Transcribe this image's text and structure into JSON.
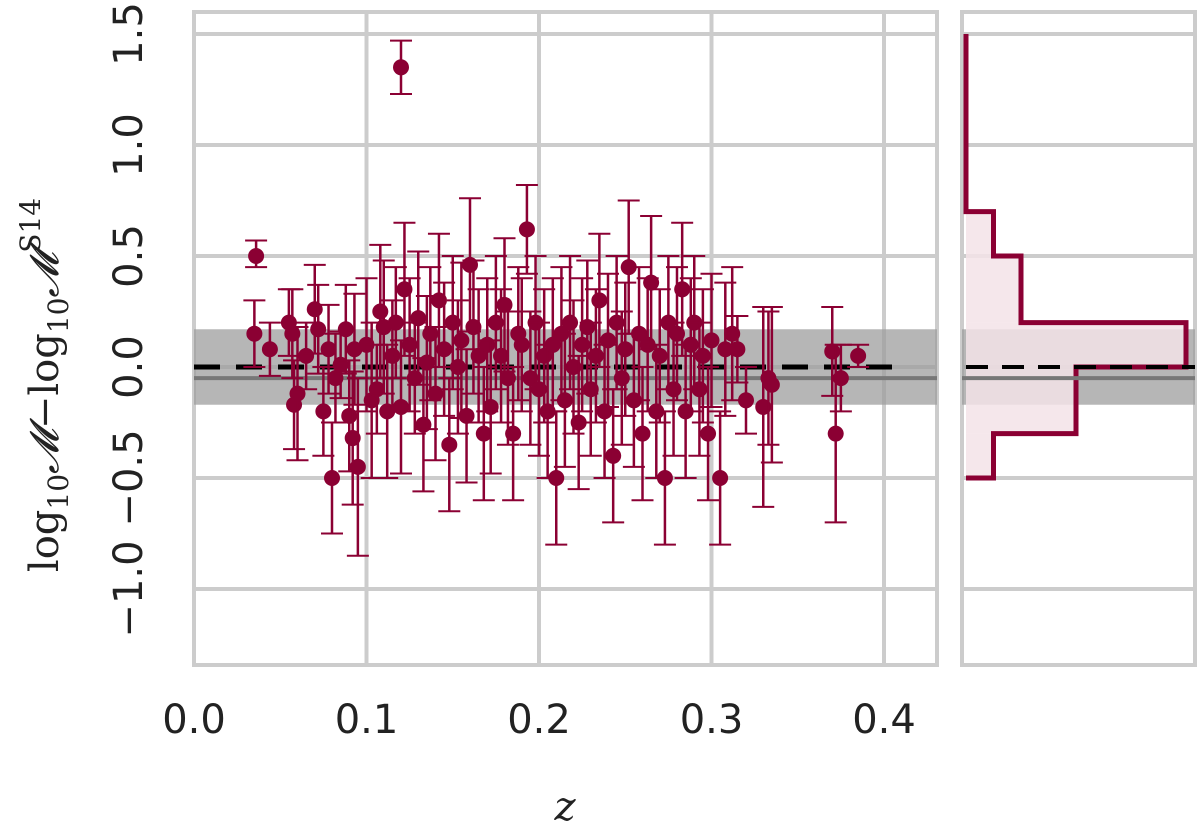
{
  "chart_data": {
    "type": "scatter",
    "title": "",
    "xlabel": "z",
    "ylabel": {
      "text": "log10 𝓜 − log10 𝓜^S14",
      "part1": "log",
      "sub1": "10",
      "m1": "𝓜",
      "minus": "−log",
      "sub2": "10",
      "m2": "𝓜",
      "sup": "S14"
    },
    "xlim": [
      0.0,
      0.43
    ],
    "ylim": [
      -1.3,
      1.6
    ],
    "xticks": [
      "0.0",
      "0.1",
      "0.2",
      "0.3",
      "0.4"
    ],
    "xtick_values": [
      0.0,
      0.1,
      0.2,
      0.3,
      0.4
    ],
    "yticks": [
      "−1.0",
      "−0.5",
      "0.0",
      "0.5",
      "1.0",
      "1.5"
    ],
    "ytick_values": [
      -1.0,
      -0.5,
      0.0,
      0.5,
      1.0,
      1.5
    ],
    "grid": true,
    "reference_line": 0.0,
    "median_line": -0.05,
    "scatter_band": [
      -0.17,
      0.17
    ],
    "colors": {
      "points": "#8b0033",
      "band": "#9e9e9e",
      "grid": "#cccccc",
      "reference": "#000000",
      "hist_fill": "#f3e3e7"
    },
    "points": [
      [
        0.036,
        0.5,
        0.05,
        0.07
      ],
      [
        0.035,
        0.15,
        0.15,
        0.15
      ],
      [
        0.044,
        0.08,
        0.12,
        0.12
      ],
      [
        0.055,
        0.2,
        0.15,
        0.15
      ],
      [
        0.057,
        0.15,
        0.2,
        0.2
      ],
      [
        0.058,
        -0.17,
        0.2,
        0.2
      ],
      [
        0.06,
        -0.12,
        0.3,
        0.3
      ],
      [
        0.065,
        0.05,
        0.15,
        0.15
      ],
      [
        0.07,
        0.26,
        0.2,
        0.2
      ],
      [
        0.072,
        0.17,
        0.2,
        0.2
      ],
      [
        0.075,
        -0.2,
        0.2,
        0.2
      ],
      [
        0.078,
        0.08,
        0.2,
        0.2
      ],
      [
        0.08,
        -0.5,
        0.25,
        0.25
      ],
      [
        0.082,
        -0.05,
        0.2,
        0.2
      ],
      [
        0.085,
        0.01,
        0.15,
        0.15
      ],
      [
        0.088,
        0.17,
        0.2,
        0.2
      ],
      [
        0.09,
        -0.22,
        0.25,
        0.25
      ],
      [
        0.092,
        -0.32,
        0.3,
        0.3
      ],
      [
        0.093,
        0.08,
        0.25,
        0.25
      ],
      [
        0.095,
        -0.45,
        0.4,
        0.4
      ],
      [
        0.1,
        0.1,
        0.3,
        0.3
      ],
      [
        0.103,
        -0.15,
        0.35,
        0.35
      ],
      [
        0.106,
        -0.1,
        0.2,
        0.2
      ],
      [
        0.108,
        0.25,
        0.3,
        0.3
      ],
      [
        0.11,
        0.18,
        0.3,
        0.3
      ],
      [
        0.112,
        -0.2,
        0.3,
        0.3
      ],
      [
        0.115,
        0.05,
        0.25,
        0.25
      ],
      [
        0.117,
        0.2,
        0.25,
        0.25
      ],
      [
        0.12,
        1.35,
        0.12,
        0.12
      ],
      [
        0.12,
        -0.18,
        0.3,
        0.3
      ],
      [
        0.122,
        0.35,
        0.3,
        0.3
      ],
      [
        0.125,
        0.1,
        0.3,
        0.3
      ],
      [
        0.128,
        -0.05,
        0.25,
        0.25
      ],
      [
        0.13,
        0.22,
        0.3,
        0.3
      ],
      [
        0.133,
        -0.26,
        0.3,
        0.3
      ],
      [
        0.135,
        0.02,
        0.3,
        0.3
      ],
      [
        0.137,
        0.15,
        0.3,
        0.3
      ],
      [
        0.14,
        -0.12,
        0.3,
        0.3
      ],
      [
        0.142,
        0.3,
        0.3,
        0.3
      ],
      [
        0.145,
        0.08,
        0.3,
        0.3
      ],
      [
        0.148,
        -0.35,
        0.3,
        0.3
      ],
      [
        0.15,
        0.2,
        0.3,
        0.3
      ],
      [
        0.153,
        0.0,
        0.3,
        0.3
      ],
      [
        0.155,
        0.12,
        0.35,
        0.35
      ],
      [
        0.158,
        -0.22,
        0.3,
        0.3
      ],
      [
        0.16,
        0.46,
        0.3,
        0.3
      ],
      [
        0.162,
        0.18,
        0.3,
        0.3
      ],
      [
        0.165,
        0.05,
        0.3,
        0.3
      ],
      [
        0.168,
        -0.3,
        0.3,
        0.3
      ],
      [
        0.17,
        0.1,
        0.3,
        0.3
      ],
      [
        0.172,
        -0.18,
        0.3,
        0.3
      ],
      [
        0.175,
        0.2,
        0.3,
        0.3
      ],
      [
        0.178,
        0.05,
        0.3,
        0.3
      ],
      [
        0.18,
        0.28,
        0.3,
        0.3
      ],
      [
        0.182,
        -0.05,
        0.3,
        0.3
      ],
      [
        0.185,
        -0.3,
        0.3,
        0.3
      ],
      [
        0.188,
        0.15,
        0.3,
        0.3
      ],
      [
        0.19,
        0.1,
        0.3,
        0.3
      ],
      [
        0.193,
        0.62,
        0.2,
        0.2
      ],
      [
        0.195,
        -0.05,
        0.3,
        0.3
      ],
      [
        0.198,
        0.2,
        0.3,
        0.3
      ],
      [
        0.2,
        -0.1,
        0.3,
        0.3
      ],
      [
        0.203,
        0.05,
        0.3,
        0.3
      ],
      [
        0.205,
        -0.2,
        0.3,
        0.3
      ],
      [
        0.208,
        0.1,
        0.3,
        0.3
      ],
      [
        0.21,
        -0.5,
        0.3,
        0.3
      ],
      [
        0.213,
        0.15,
        0.3,
        0.3
      ],
      [
        0.215,
        -0.15,
        0.3,
        0.3
      ],
      [
        0.218,
        0.2,
        0.3,
        0.3
      ],
      [
        0.22,
        0.0,
        0.3,
        0.3
      ],
      [
        0.223,
        -0.25,
        0.3,
        0.3
      ],
      [
        0.225,
        0.1,
        0.3,
        0.3
      ],
      [
        0.228,
        0.18,
        0.3,
        0.3
      ],
      [
        0.23,
        -0.1,
        0.3,
        0.3
      ],
      [
        0.233,
        0.05,
        0.3,
        0.3
      ],
      [
        0.235,
        0.3,
        0.3,
        0.3
      ],
      [
        0.238,
        -0.2,
        0.3,
        0.3
      ],
      [
        0.24,
        0.12,
        0.3,
        0.3
      ],
      [
        0.243,
        -0.4,
        0.3,
        0.3
      ],
      [
        0.245,
        0.2,
        0.3,
        0.3
      ],
      [
        0.248,
        -0.05,
        0.3,
        0.3
      ],
      [
        0.25,
        0.08,
        0.3,
        0.3
      ],
      [
        0.252,
        0.45,
        0.3,
        0.3
      ],
      [
        0.255,
        -0.15,
        0.3,
        0.3
      ],
      [
        0.258,
        0.15,
        0.3,
        0.3
      ],
      [
        0.26,
        -0.3,
        0.3,
        0.3
      ],
      [
        0.263,
        0.1,
        0.3,
        0.3
      ],
      [
        0.265,
        0.38,
        0.3,
        0.3
      ],
      [
        0.268,
        -0.2,
        0.3,
        0.3
      ],
      [
        0.27,
        0.05,
        0.3,
        0.3
      ],
      [
        0.273,
        -0.5,
        0.3,
        0.3
      ],
      [
        0.275,
        0.2,
        0.3,
        0.3
      ],
      [
        0.278,
        -0.1,
        0.3,
        0.3
      ],
      [
        0.28,
        0.15,
        0.3,
        0.3
      ],
      [
        0.283,
        0.35,
        0.3,
        0.3
      ],
      [
        0.285,
        -0.2,
        0.3,
        0.3
      ],
      [
        0.288,
        0.1,
        0.3,
        0.3
      ],
      [
        0.29,
        0.2,
        0.3,
        0.3
      ],
      [
        0.293,
        -0.1,
        0.3,
        0.3
      ],
      [
        0.295,
        0.05,
        0.3,
        0.3
      ],
      [
        0.298,
        -0.3,
        0.3,
        0.3
      ],
      [
        0.3,
        0.12,
        0.3,
        0.3
      ],
      [
        0.305,
        -0.5,
        0.3,
        0.3
      ],
      [
        0.308,
        0.08,
        0.3,
        0.3
      ],
      [
        0.312,
        0.15,
        0.3,
        0.3
      ],
      [
        0.315,
        0.08,
        0.15,
        0.15
      ],
      [
        0.32,
        -0.15,
        0.15,
        0.15
      ],
      [
        0.33,
        -0.18,
        0.45,
        0.45
      ],
      [
        0.333,
        -0.05,
        0.3,
        0.3
      ],
      [
        0.335,
        -0.08,
        0.35,
        0.35
      ],
      [
        0.37,
        0.07,
        0.2,
        0.2
      ],
      [
        0.372,
        -0.3,
        0.4,
        0.4
      ],
      [
        0.375,
        -0.05,
        0.15,
        0.15
      ],
      [
        0.385,
        0.05,
        0.05,
        0.05
      ]
    ],
    "histogram": {
      "orientation": "horizontal",
      "bin_edges": [
        -0.5,
        -0.3,
        0.0,
        0.2,
        0.5,
        0.7,
        1.3,
        1.5
      ],
      "counts": [
        1,
        4,
        8,
        2,
        1,
        0,
        0
      ]
    }
  }
}
